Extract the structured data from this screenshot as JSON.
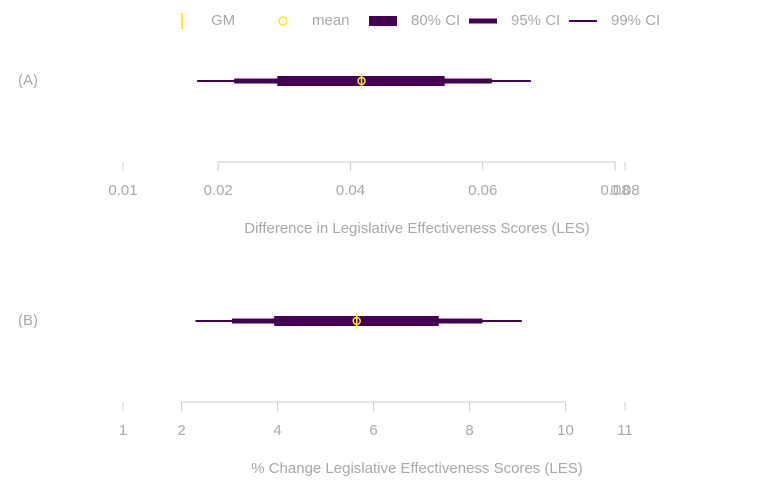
{
  "legend": {
    "items": [
      {
        "label": "GM",
        "color": "#fde725",
        "symbol": "tick"
      },
      {
        "label": "mean",
        "color": "#fde725",
        "symbol": "circle"
      },
      {
        "label": "80% CI",
        "color": "#440154",
        "symbol": "bar"
      },
      {
        "label": "95% CI",
        "color": "#440154",
        "symbol": "bar"
      },
      {
        "label": "99% CI",
        "color": "#440154",
        "symbol": "bar"
      }
    ]
  },
  "chart_data": [
    {
      "type": "interval",
      "panel_label": "(A)",
      "xlabel": "Difference in Legislative Effectiveness Scores (LES)",
      "xlim": [
        0.00561,
        0.0815
      ],
      "xticks": [
        {
          "value": 0.00561,
          "label": "0.01"
        },
        0.02,
        0.04,
        0.06,
        0.08,
        {
          "value": 0.0815,
          "label": "0.08"
        }
      ],
      "intervals": [
        [
          0.02894,
          0.05424
        ],
        [
          0.02242,
          0.06136
        ],
        [
          0.01682,
          0.06727
        ]
      ],
      "mean": 0.04167,
      "gm": 0.04167
    },
    {
      "type": "interval",
      "panel_label": "(B)",
      "xlabel": "% Change Legislative Effectiveness Scores (LES)",
      "xlim": [
        0.78,
        11.24
      ],
      "xticks": [
        {
          "value": 0.78,
          "label": "1"
        },
        2,
        4,
        6,
        8,
        10,
        {
          "value": 11.24,
          "label": "11"
        }
      ],
      "intervals": [
        [
          3.93,
          7.36
        ],
        [
          3.05,
          8.27
        ],
        [
          2.29,
          9.09
        ]
      ],
      "mean": 5.65,
      "gm": 5.65
    }
  ]
}
